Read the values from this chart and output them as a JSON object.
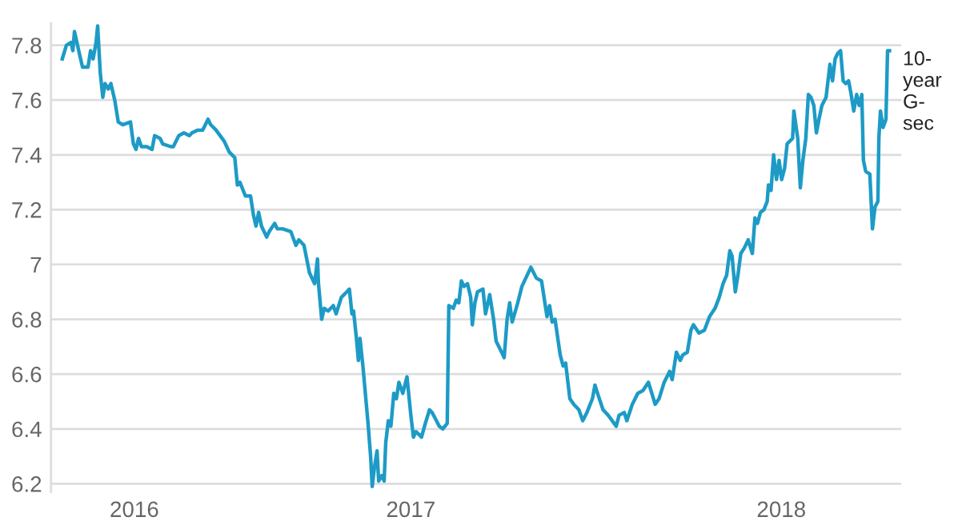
{
  "chart_data": {
    "type": "line",
    "x": [
      2015.776,
      2015.789,
      2015.803,
      2015.809,
      2015.814,
      2015.831,
      2015.839,
      2015.856,
      2015.864,
      2015.872,
      2015.881,
      2015.886,
      2015.894,
      2015.902,
      2015.909,
      2015.919,
      2015.927,
      2015.939,
      2015.95,
      2015.964,
      2015.988,
      2015.997,
      2016.005,
      2016.013,
      2016.022,
      2016.038,
      2016.055,
      2016.063,
      2016.08,
      2016.088,
      2016.113,
      2016.121,
      2016.138,
      2016.154,
      2016.171,
      2016.179,
      2016.196,
      2016.212,
      2016.229,
      2016.237,
      2016.254,
      2016.279,
      2016.287,
      2016.295,
      2016.312,
      2016.32,
      2016.328,
      2016.345,
      2016.361,
      2016.37,
      2016.378,
      2016.386,
      2016.395,
      2016.411,
      2016.419,
      2016.436,
      2016.444,
      2016.461,
      2016.486,
      2016.502,
      2016.511,
      2016.527,
      2016.544,
      2016.56,
      2016.569,
      2016.572,
      2016.582,
      2016.59,
      2016.602,
      2016.618,
      2016.627,
      2016.643,
      2016.66,
      2016.668,
      2016.676,
      2016.681,
      2016.69,
      2016.696,
      2016.701,
      2016.71,
      2016.726,
      2016.734,
      2016.739,
      2016.746,
      2016.754,
      2016.759,
      2016.769,
      2016.776,
      2016.781,
      2016.789,
      2016.797,
      2016.806,
      2016.814,
      2016.822,
      2016.834,
      2016.847,
      2016.859,
      2016.867,
      2016.875,
      2016.884,
      2016.892,
      2016.904,
      2016.917,
      2016.925,
      2016.934,
      2016.947,
      2016.958,
      2016.972,
      2016.977,
      2016.991,
      2017.0,
      2017.008,
      2017.016,
      2017.024,
      2017.035,
      2017.045,
      2017.05,
      2017.058,
      2017.066,
      2017.083,
      2017.091,
      2017.104,
      2017.116,
      2017.124,
      2017.141,
      2017.149,
      2017.158,
      2017.166,
      2017.174,
      2017.191,
      2017.204,
      2017.216,
      2017.232,
      2017.249,
      2017.265,
      2017.282,
      2017.29,
      2017.298,
      2017.307,
      2017.323,
      2017.332,
      2017.34,
      2017.353,
      2017.365,
      2017.381,
      2017.393,
      2017.406,
      2017.423,
      2017.431,
      2017.439,
      2017.456,
      2017.472,
      2017.497,
      2017.506,
      2017.522,
      2017.53,
      2017.547,
      2017.564,
      2017.58,
      2017.597,
      2017.605,
      2017.618,
      2017.63,
      2017.646,
      2017.663,
      2017.671,
      2017.684,
      2017.696,
      2017.704,
      2017.718,
      2017.729,
      2017.737,
      2017.754,
      2017.771,
      2017.787,
      2017.804,
      2017.817,
      2017.829,
      2017.84,
      2017.85,
      2017.857,
      2017.867,
      2017.875,
      2017.884,
      2017.895,
      2017.907,
      2017.92,
      2017.928,
      2017.936,
      2017.945,
      2017.956,
      2017.966,
      2017.97,
      2017.978,
      2017.986,
      2017.995,
      2018.003,
      2018.011,
      2018.02,
      2018.028,
      2018.045,
      2018.049,
      2018.061,
      2018.069,
      2018.077,
      2018.086,
      2018.094,
      2018.102,
      2018.111,
      2018.119,
      2018.127,
      2018.136,
      2018.149,
      2018.161,
      2018.169,
      2018.177,
      2018.185,
      2018.194,
      2018.202,
      2018.21,
      2018.219,
      2018.227,
      2018.235,
      2018.244,
      2018.252,
      2018.26,
      2018.265,
      2018.272,
      2018.285,
      2018.293,
      2018.301,
      2018.31,
      2018.313,
      2018.318,
      2018.326,
      2018.335,
      2018.34,
      2018.346
    ],
    "series": [
      {
        "name": "10-year G-sec",
        "color": "#1d9bc6",
        "values": [
          7.75,
          7.8,
          7.81,
          7.78,
          7.85,
          7.76,
          7.72,
          7.72,
          7.78,
          7.75,
          7.81,
          7.87,
          7.7,
          7.61,
          7.66,
          7.64,
          7.66,
          7.6,
          7.52,
          7.51,
          7.52,
          7.44,
          7.42,
          7.46,
          7.43,
          7.43,
          7.42,
          7.47,
          7.46,
          7.44,
          7.43,
          7.43,
          7.47,
          7.48,
          7.47,
          7.48,
          7.49,
          7.49,
          7.53,
          7.51,
          7.49,
          7.45,
          7.43,
          7.41,
          7.39,
          7.29,
          7.3,
          7.25,
          7.25,
          7.18,
          7.14,
          7.19,
          7.14,
          7.1,
          7.12,
          7.15,
          7.13,
          7.13,
          7.12,
          7.07,
          7.09,
          7.07,
          6.97,
          6.93,
          7.02,
          6.93,
          6.8,
          6.84,
          6.83,
          6.85,
          6.82,
          6.88,
          6.9,
          6.91,
          6.82,
          6.83,
          6.73,
          6.65,
          6.73,
          6.63,
          6.42,
          6.3,
          6.19,
          6.26,
          6.32,
          6.21,
          6.23,
          6.21,
          6.35,
          6.43,
          6.41,
          6.53,
          6.51,
          6.57,
          6.53,
          6.59,
          6.45,
          6.37,
          6.39,
          6.38,
          6.37,
          6.42,
          6.47,
          6.46,
          6.44,
          6.41,
          6.4,
          6.42,
          6.85,
          6.84,
          6.87,
          6.86,
          6.94,
          6.92,
          6.93,
          6.88,
          6.78,
          6.86,
          6.9,
          6.91,
          6.82,
          6.89,
          6.8,
          6.72,
          6.68,
          6.66,
          6.8,
          6.86,
          6.79,
          6.86,
          6.92,
          6.95,
          6.99,
          6.95,
          6.94,
          6.81,
          6.85,
          6.79,
          6.8,
          6.67,
          6.63,
          6.64,
          6.51,
          6.49,
          6.47,
          6.43,
          6.46,
          6.51,
          6.56,
          6.53,
          6.47,
          6.45,
          6.41,
          6.45,
          6.46,
          6.43,
          6.49,
          6.53,
          6.54,
          6.57,
          6.54,
          6.49,
          6.51,
          6.57,
          6.61,
          6.58,
          6.68,
          6.65,
          6.67,
          6.68,
          6.76,
          6.78,
          6.75,
          6.76,
          6.81,
          6.84,
          6.88,
          6.93,
          6.96,
          7.05,
          7.03,
          6.9,
          6.96,
          7.04,
          7.06,
          7.09,
          7.04,
          7.17,
          7.15,
          7.19,
          7.2,
          7.23,
          7.29,
          7.27,
          7.4,
          7.31,
          7.38,
          7.31,
          7.35,
          7.44,
          7.46,
          7.56,
          7.46,
          7.28,
          7.38,
          7.46,
          7.62,
          7.61,
          7.58,
          7.48,
          7.53,
          7.58,
          7.61,
          7.73,
          7.67,
          7.75,
          7.77,
          7.78,
          7.67,
          7.66,
          7.67,
          7.62,
          7.56,
          7.62,
          7.58,
          7.62,
          7.38,
          7.34,
          7.33,
          7.13,
          7.21,
          7.23,
          7.46,
          7.56,
          7.5,
          7.53,
          7.78,
          7.78
        ]
      }
    ],
    "xlim": [
      2015.741,
      2018.383
    ],
    "ylim": [
      6.17,
      7.88
    ],
    "xticks": [
      {
        "value": 2016.0,
        "label": "2016"
      },
      {
        "value": 2016.859,
        "label": "2017"
      },
      {
        "value": 2018.01,
        "label": "2018"
      }
    ],
    "yticks": [
      6.2,
      6.4,
      6.6,
      6.8,
      7,
      7.2,
      7.4,
      7.6,
      7.8
    ],
    "grid": "y",
    "legend": false,
    "line_style": "solid",
    "marker": "none"
  }
}
